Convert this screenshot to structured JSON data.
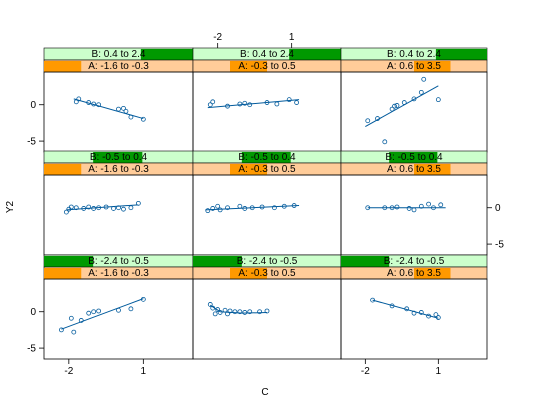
{
  "chart_data": {
    "type": "scatter",
    "layout": "3x3 coplot grid with fitted lines",
    "xlabel": "C",
    "ylabel": "Y2",
    "xlim": [
      -3,
      3
    ],
    "ylim": [
      -6.5,
      4.5
    ],
    "x_ticks": [
      -2,
      1
    ],
    "y_ticks": [
      -5,
      0
    ],
    "strip_colors": {
      "B_fill": "#ccffcc",
      "B_shade": "#009900",
      "A_fill": "#ffcc99",
      "A_shade": "#ff9900",
      "point_color": "#005a9c",
      "line_color": "#005a9c"
    },
    "panels": [
      {
        "row": 3,
        "col": 1,
        "B_label": "B: 0.4 to 2.4",
        "B_shade": [
          0.65,
          1.0
        ],
        "A_label": "A: -1.6 to -0.3",
        "A_shade": [
          0.0,
          0.25
        ],
        "points": [
          {
            "x": -1.7,
            "y": 0.4
          },
          {
            "x": -1.6,
            "y": 0.8
          },
          {
            "x": -1.2,
            "y": 0.3
          },
          {
            "x": -1.0,
            "y": 0.1
          },
          {
            "x": -0.8,
            "y": 0.0
          },
          {
            "x": 0.0,
            "y": -0.6
          },
          {
            "x": 0.2,
            "y": -0.5
          },
          {
            "x": 0.3,
            "y": -0.9
          },
          {
            "x": 0.5,
            "y": -1.7
          },
          {
            "x": 1.0,
            "y": -2.0
          }
        ],
        "fit": [
          {
            "x": -1.8,
            "y": 0.8
          },
          {
            "x": 1.0,
            "y": -1.9
          }
        ]
      },
      {
        "row": 3,
        "col": 2,
        "B_label": "B: 0.4 to 2.4",
        "B_shade": [
          0.65,
          1.0
        ],
        "A_label": "A: -0.3 to 0.5",
        "A_shade": [
          0.25,
          0.5
        ],
        "points": [
          {
            "x": -2.3,
            "y": 0.0
          },
          {
            "x": -2.2,
            "y": 0.4
          },
          {
            "x": -1.6,
            "y": -0.2
          },
          {
            "x": -1.1,
            "y": 0.1
          },
          {
            "x": -0.9,
            "y": 0.2
          },
          {
            "x": -0.7,
            "y": 0.0
          },
          {
            "x": 0.0,
            "y": 0.3
          },
          {
            "x": 0.4,
            "y": 0.1
          },
          {
            "x": 0.9,
            "y": 0.7
          },
          {
            "x": 1.2,
            "y": 0.3
          }
        ],
        "fit": [
          {
            "x": -2.4,
            "y": -0.4
          },
          {
            "x": 1.3,
            "y": 0.7
          }
        ]
      },
      {
        "row": 3,
        "col": 3,
        "B_label": "B: 0.4 to 2.4",
        "B_shade": [
          0.65,
          1.0
        ],
        "A_label": "A: 0.6 to 3.5",
        "A_shade": [
          0.5,
          0.75
        ],
        "points": [
          {
            "x": -1.9,
            "y": -2.2
          },
          {
            "x": -1.5,
            "y": -1.9
          },
          {
            "x": -1.2,
            "y": -5.1
          },
          {
            "x": -0.9,
            "y": -0.6
          },
          {
            "x": -0.8,
            "y": -0.2
          },
          {
            "x": -0.7,
            "y": -0.1
          },
          {
            "x": -0.4,
            "y": 0.3
          },
          {
            "x": 0.0,
            "y": 0.8
          },
          {
            "x": 0.3,
            "y": 1.7
          },
          {
            "x": 0.4,
            "y": 3.5
          },
          {
            "x": 1.0,
            "y": 0.7
          }
        ],
        "fit": [
          {
            "x": -2.0,
            "y": -3.0
          },
          {
            "x": 1.0,
            "y": 2.6
          }
        ]
      },
      {
        "row": 2,
        "col": 1,
        "B_label": "B: -0.5 to 0.4",
        "B_shade": [
          0.33,
          0.66
        ],
        "A_label": "A: -1.6 to -0.3",
        "A_shade": [
          0.0,
          0.25
        ],
        "points": [
          {
            "x": -2.1,
            "y": -0.6
          },
          {
            "x": -2.0,
            "y": -0.2
          },
          {
            "x": -1.9,
            "y": 0.1
          },
          {
            "x": -1.7,
            "y": 0.0
          },
          {
            "x": -1.4,
            "y": -0.1
          },
          {
            "x": -1.2,
            "y": 0.1
          },
          {
            "x": -1.0,
            "y": -0.1
          },
          {
            "x": -0.8,
            "y": 0.0
          },
          {
            "x": -0.5,
            "y": 0.1
          },
          {
            "x": -0.2,
            "y": -0.1
          },
          {
            "x": 0.0,
            "y": 0.0
          },
          {
            "x": 0.2,
            "y": -0.2
          },
          {
            "x": 0.5,
            "y": 0.0
          },
          {
            "x": 0.8,
            "y": 0.6
          }
        ],
        "fit": [
          {
            "x": -2.1,
            "y": -0.3
          },
          {
            "x": 0.8,
            "y": 0.4
          }
        ]
      },
      {
        "row": 2,
        "col": 2,
        "B_label": "B: -0.5 to 0.4",
        "B_shade": [
          0.33,
          0.66
        ],
        "A_label": "A: -0.3 to 0.5",
        "A_shade": [
          0.25,
          0.5
        ],
        "points": [
          {
            "x": -2.4,
            "y": -0.4
          },
          {
            "x": -2.2,
            "y": -0.1
          },
          {
            "x": -2.0,
            "y": 0.2
          },
          {
            "x": -1.9,
            "y": -0.3
          },
          {
            "x": -1.6,
            "y": 0.0
          },
          {
            "x": -1.1,
            "y": 0.2
          },
          {
            "x": -0.9,
            "y": -0.1
          },
          {
            "x": -0.6,
            "y": 0.0
          },
          {
            "x": -0.2,
            "y": 0.1
          },
          {
            "x": 0.3,
            "y": 0.0
          },
          {
            "x": 0.7,
            "y": 0.2
          },
          {
            "x": 1.1,
            "y": 0.3
          }
        ],
        "fit": [
          {
            "x": -2.5,
            "y": -0.3
          },
          {
            "x": 1.3,
            "y": 0.3
          }
        ]
      },
      {
        "row": 2,
        "col": 3,
        "B_label": "B: -0.5 to 0.4",
        "B_shade": [
          0.33,
          0.66
        ],
        "A_label": "A: 0.6 to 3.5",
        "A_shade": [
          0.5,
          0.75
        ],
        "points": [
          {
            "x": -1.9,
            "y": 0.0
          },
          {
            "x": -1.2,
            "y": 0.0
          },
          {
            "x": -0.9,
            "y": 0.0
          },
          {
            "x": -0.7,
            "y": 0.1
          },
          {
            "x": -0.2,
            "y": -0.1
          },
          {
            "x": 0.0,
            "y": -0.3
          },
          {
            "x": 0.3,
            "y": 0.2
          },
          {
            "x": 0.6,
            "y": 0.5
          },
          {
            "x": 0.8,
            "y": 0.0
          },
          {
            "x": 1.1,
            "y": 0.4
          }
        ],
        "fit": [
          {
            "x": -1.9,
            "y": 0.0
          },
          {
            "x": 1.3,
            "y": 0.0
          }
        ]
      },
      {
        "row": 1,
        "col": 1,
        "B_label": "B: -2.4 to -0.5",
        "B_shade": [
          0.0,
          0.33
        ],
        "A_label": "A: -1.6 to -0.3",
        "A_shade": [
          0.0,
          0.25
        ],
        "points": [
          {
            "x": -2.3,
            "y": -2.5
          },
          {
            "x": -1.9,
            "y": -0.9
          },
          {
            "x": -1.8,
            "y": -2.8
          },
          {
            "x": -1.5,
            "y": -1.2
          },
          {
            "x": -1.2,
            "y": -0.2
          },
          {
            "x": -1.0,
            "y": 0.0
          },
          {
            "x": -0.8,
            "y": 0.1
          },
          {
            "x": 0.0,
            "y": 0.2
          },
          {
            "x": 0.5,
            "y": 0.4
          },
          {
            "x": 1.0,
            "y": 1.7
          }
        ],
        "fit": [
          {
            "x": -2.3,
            "y": -2.4
          },
          {
            "x": 1.0,
            "y": 1.8
          }
        ]
      },
      {
        "row": 1,
        "col": 2,
        "B_label": "B: -2.4 to -0.5",
        "B_shade": [
          0.0,
          0.33
        ],
        "A_label": "A: -0.3 to 0.5",
        "A_shade": [
          0.25,
          0.5
        ],
        "points": [
          {
            "x": -2.3,
            "y": 1.0
          },
          {
            "x": -2.2,
            "y": 0.5
          },
          {
            "x": -2.1,
            "y": -0.3
          },
          {
            "x": -2.0,
            "y": 0.3
          },
          {
            "x": -1.9,
            "y": -0.1
          },
          {
            "x": -1.7,
            "y": 0.2
          },
          {
            "x": -1.6,
            "y": -0.3
          },
          {
            "x": -1.5,
            "y": 0.1
          },
          {
            "x": -1.3,
            "y": 0.0
          },
          {
            "x": -1.1,
            "y": 0.0
          },
          {
            "x": -0.9,
            "y": -0.1
          },
          {
            "x": -0.7,
            "y": 0.0
          },
          {
            "x": -0.3,
            "y": 0.0
          },
          {
            "x": 0.0,
            "y": 0.1
          }
        ],
        "fit": [
          {
            "x": -2.3,
            "y": 0.9
          },
          {
            "x": -1.9,
            "y": 0.0
          },
          {
            "x": -1.0,
            "y": -0.2
          },
          {
            "x": 0.0,
            "y": -0.1
          }
        ]
      },
      {
        "row": 1,
        "col": 3,
        "B_label": "B: -2.4 to -0.5",
        "B_shade": [
          0.0,
          0.33
        ],
        "A_label": "A: 0.6 to 3.5",
        "A_shade": [
          0.5,
          0.75
        ],
        "points": [
          {
            "x": -1.7,
            "y": 1.6
          },
          {
            "x": -0.9,
            "y": 0.8
          },
          {
            "x": -0.3,
            "y": 0.4
          },
          {
            "x": 0.0,
            "y": -0.2
          },
          {
            "x": 0.3,
            "y": -0.1
          },
          {
            "x": 0.6,
            "y": -0.6
          },
          {
            "x": 0.9,
            "y": -0.4
          },
          {
            "x": 1.0,
            "y": -0.8
          }
        ],
        "fit": [
          {
            "x": -1.7,
            "y": 1.6
          },
          {
            "x": 1.0,
            "y": -0.9
          }
        ]
      }
    ]
  }
}
